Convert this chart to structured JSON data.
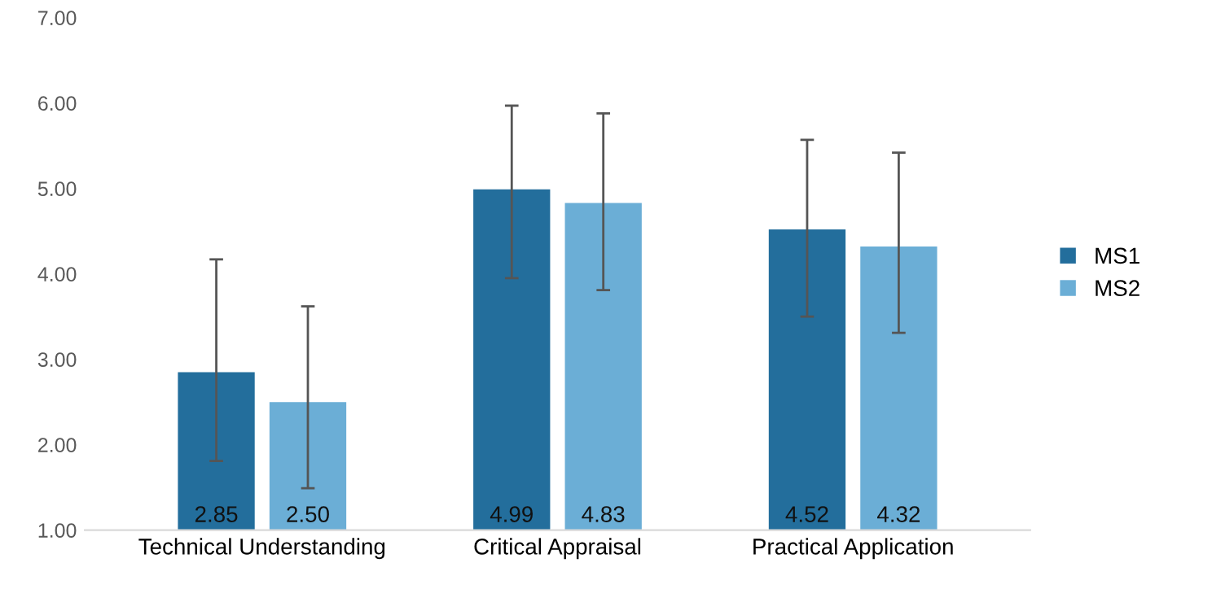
{
  "chart_data": {
    "type": "bar",
    "categories": [
      "Technical Understanding",
      "Critical Appraisal",
      "Practical Application"
    ],
    "series": [
      {
        "name": "MS1",
        "color": "#236e9c",
        "values": [
          2.85,
          4.99,
          4.52
        ],
        "value_labels": [
          "2.85",
          "4.99",
          "4.52"
        ],
        "errors": [
          [
            1.81,
            4.17
          ],
          [
            3.95,
            5.97
          ],
          [
            3.5,
            5.57
          ]
        ]
      },
      {
        "name": "MS2",
        "color": "#6baed6",
        "values": [
          2.5,
          4.83,
          4.32
        ],
        "value_labels": [
          "2.50",
          "4.83",
          "4.32"
        ],
        "errors": [
          [
            1.49,
            3.62
          ],
          [
            3.81,
            5.88
          ],
          [
            3.31,
            5.42
          ]
        ]
      }
    ],
    "ylim": [
      1,
      7
    ],
    "yticks": [
      {
        "value": 1,
        "label": "1.00"
      },
      {
        "value": 2,
        "label": "2.00"
      },
      {
        "value": 3,
        "label": "3.00"
      },
      {
        "value": 4,
        "label": "4.00"
      },
      {
        "value": 5,
        "label": "5.00"
      },
      {
        "value": 6,
        "label": "6.00"
      },
      {
        "value": 7,
        "label": "7.00"
      }
    ],
    "grid": false,
    "legend": "right"
  }
}
